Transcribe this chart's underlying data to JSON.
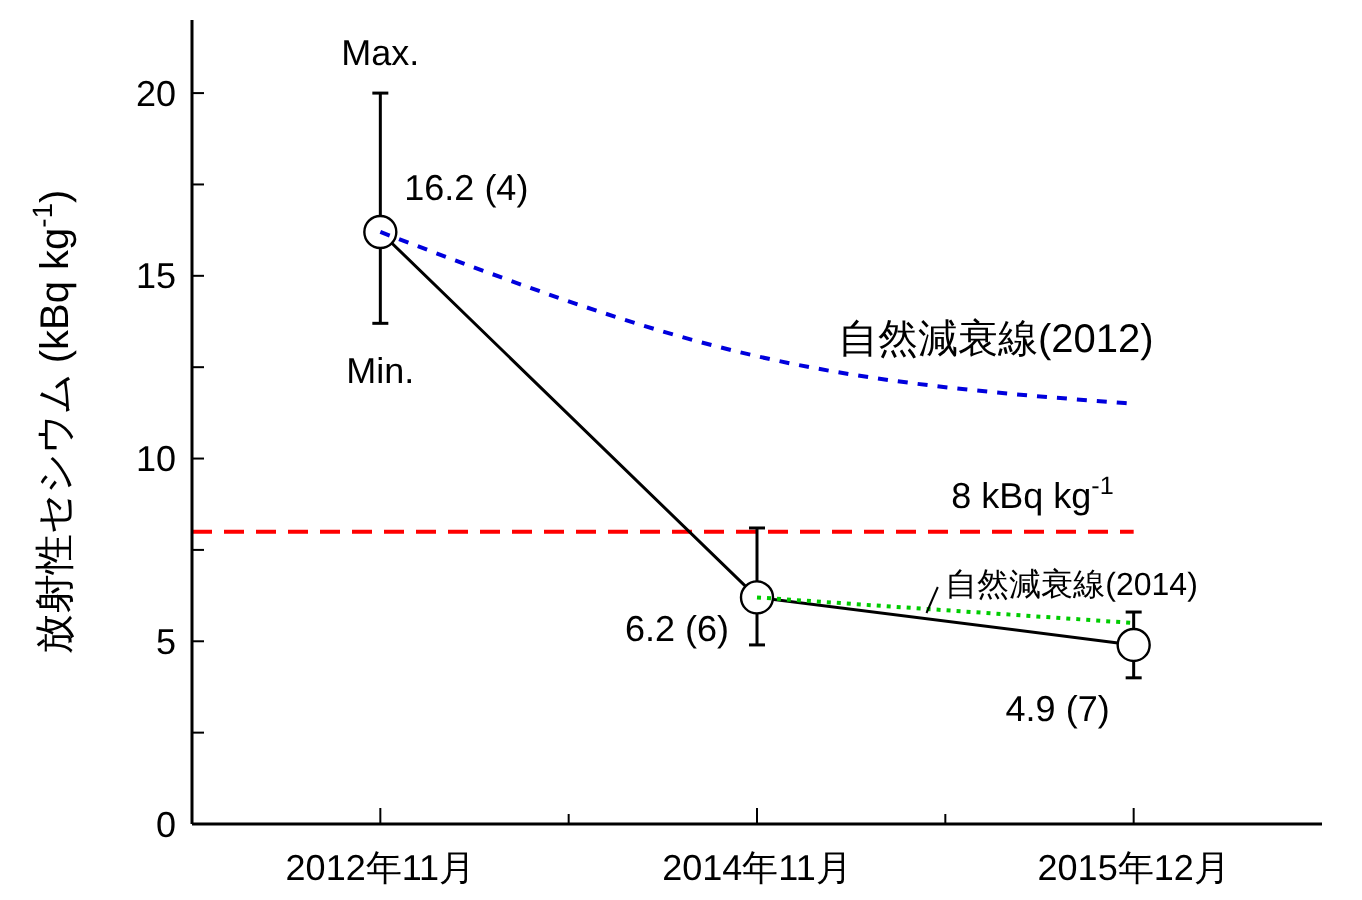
{
  "chart_data": {
    "type": "line",
    "ylabel": "放射性セシウム (kBq kg$^{-1}$)",
    "categories": [
      "2012年11月",
      "2014年11月",
      "2015年12月"
    ],
    "ylim": [
      0,
      22
    ],
    "yticks": [
      0,
      {
        "value": 2.5,
        "label": null
      },
      5,
      {
        "value": 7.5,
        "label": null
      },
      10,
      {
        "value": 12.5,
        "label": null
      },
      15,
      {
        "value": 17.5,
        "label": null
      },
      20
    ],
    "grid": false,
    "series": [
      {
        "color": "#000000",
        "values": [
          16.2,
          6.2,
          4.9
        ],
        "marker": "circle",
        "line_style": "solid",
        "errors": [
          [
            13.7,
            20
          ],
          [
            4.9,
            8.1
          ],
          [
            4.0,
            5.8
          ]
        ],
        "value_labels": [
          "16.2 (4)",
          "6.2 (6)",
          "4.9 (7)"
        ]
      },
      {
        "name": "自然減衰線(2012)",
        "color": "#0000dd",
        "values": [
          16.2,
          12.8,
          11.5
        ],
        "marker": "none",
        "line_style": "dashed"
      },
      {
        "name": "自然減衰線(2014)",
        "color": "#00cc00",
        "values": [
          null,
          6.2,
          5.5
        ],
        "marker": "none",
        "line_style": "dotted"
      }
    ],
    "ref_lines": [
      {
        "axis": "y",
        "value": 8,
        "label": "8 kBq kg$^{-1}$",
        "color": "#ff0000",
        "line_style": "dashed"
      }
    ],
    "annotations": [
      {
        "text": "Max.",
        "x": "2012年11月",
        "y": 20
      },
      {
        "text": "Min.",
        "x": "2012年11月",
        "y": 13.7
      }
    ]
  }
}
